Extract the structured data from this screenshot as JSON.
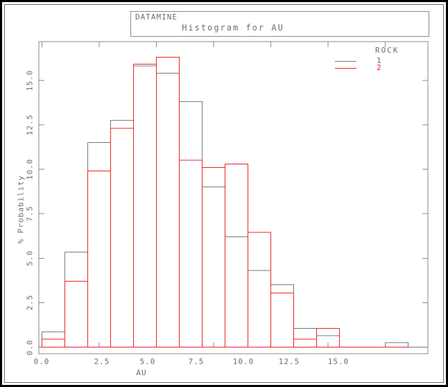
{
  "window": {
    "brand": "DATAMINE"
  },
  "colors": {
    "series1": "#7a7a7a",
    "series2": "#ee2222",
    "frame": "#8a8a8a",
    "text": "#6e6e6e"
  },
  "legend": {
    "title": "ROCK",
    "entries": [
      {
        "label": "1",
        "color": "#7a7a7a"
      },
      {
        "label": "2",
        "color": "#ee2222"
      }
    ]
  },
  "chart_data": {
    "type": "bar",
    "subtype": "outline-histogram",
    "title": "Histogram for AU",
    "xlabel": "AU",
    "ylabel": "% Probability",
    "xlim": [
      0,
      16.9
    ],
    "ylim": [
      -0.4,
      17.2
    ],
    "grid": false,
    "legend_position": "top-right",
    "legend_title": "ROCK",
    "bin_start": 0,
    "bin_width": 1,
    "x_tick_values": [
      0,
      2.5,
      5,
      7.5,
      10,
      12.5,
      15
    ],
    "x_tick_labels": [
      "0.0",
      "2.5",
      "5.0",
      "7.5",
      "10.0",
      "12.5",
      "15.0"
    ],
    "y_tick_values": [
      0,
      2.5,
      5,
      7.5,
      10,
      12.5,
      15
    ],
    "y_tick_labels": [
      "0.0",
      "2.5",
      "5.0",
      "7.5",
      "10.0",
      "12.5",
      "15.0"
    ],
    "series": [
      {
        "name": "1",
        "color": "#7a7a7a",
        "baseline_extent": [
          0,
          17
        ],
        "values": [
          0.85,
          5.35,
          11.5,
          12.75,
          15.8,
          15.4,
          13.8,
          9.0,
          6.2,
          4.3,
          3.5,
          1.05,
          0.65,
          0,
          0,
          0.25,
          0
        ]
      },
      {
        "name": "2",
        "color": "#ee2222",
        "baseline_extent": [
          0,
          16
        ],
        "values": [
          0.45,
          3.7,
          9.9,
          12.3,
          15.9,
          16.3,
          10.5,
          10.1,
          10.3,
          6.45,
          3.05,
          0.45,
          1.05,
          0,
          0,
          0
        ]
      }
    ]
  }
}
